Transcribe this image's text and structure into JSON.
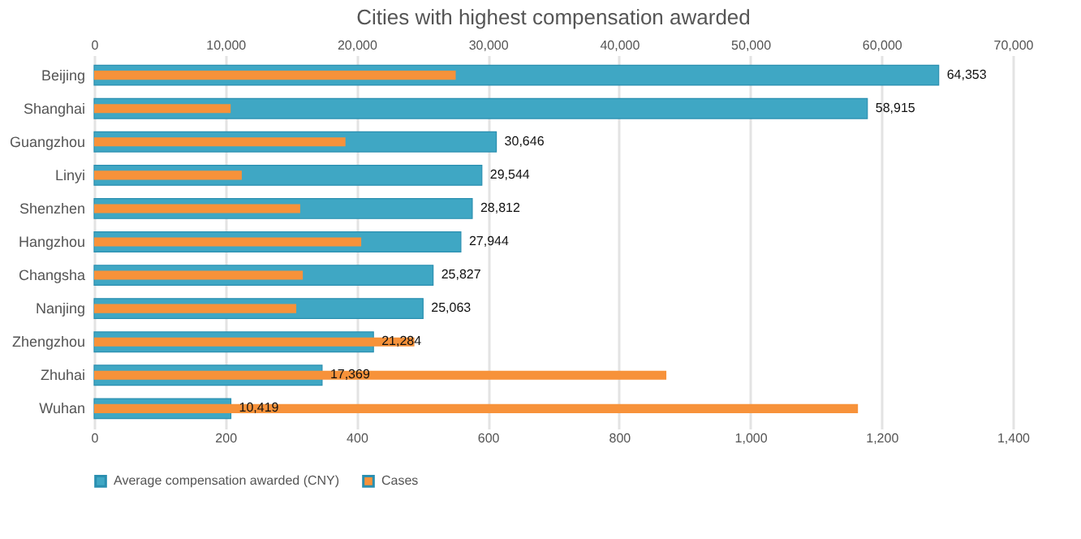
{
  "chart_data": {
    "type": "bar",
    "orientation": "horizontal",
    "title": "Cities with highest compensation awarded",
    "categories": [
      "Beijing",
      "Shanghai",
      "Guangzhou",
      "Linyi",
      "Shenzhen",
      "Hangzhou",
      "Changsha",
      "Nanjing",
      "Zhengzhou",
      "Zhuhai",
      "Wuhan"
    ],
    "series": [
      {
        "name": "Average compensation awarded (CNY)",
        "color": "#3fa7c4",
        "axis": "x2",
        "values": [
          64353,
          58915,
          30646,
          29544,
          28812,
          27944,
          25827,
          25063,
          21284,
          17369,
          10419
        ],
        "value_labels": [
          "64,353",
          "58,915",
          "30,646",
          "29,544",
          "28,812",
          "27,944",
          "25,827",
          "25,063",
          "21,284",
          "17,369",
          "10,419"
        ]
      },
      {
        "name": "Cases",
        "color": "#f7923a",
        "values": [
          551,
          208,
          383,
          225,
          314,
          407,
          318,
          308,
          488,
          872,
          1164
        ]
      }
    ],
    "xlim": [
      0,
      1400
    ],
    "xticks": [
      0,
      200,
      400,
      600,
      800,
      {
        "value": 1000,
        "label": "1,000"
      },
      {
        "value": 1200,
        "label": "1,200"
      },
      {
        "value": 1400,
        "label": "1,400"
      }
    ],
    "x2lim": [
      0,
      70000
    ],
    "x2ticks": [
      {
        "value": 0,
        "label": "0"
      },
      {
        "value": 10000,
        "label": "10,000"
      },
      {
        "value": 20000,
        "label": "20,000"
      },
      {
        "value": 30000,
        "label": "30,000"
      },
      {
        "value": 40000,
        "label": "40,000"
      },
      {
        "value": 50000,
        "label": "50,000"
      },
      {
        "value": 60000,
        "label": "60,000"
      },
      {
        "value": 70000,
        "label": "70,000"
      }
    ],
    "grid": true,
    "legend": "bottom"
  }
}
